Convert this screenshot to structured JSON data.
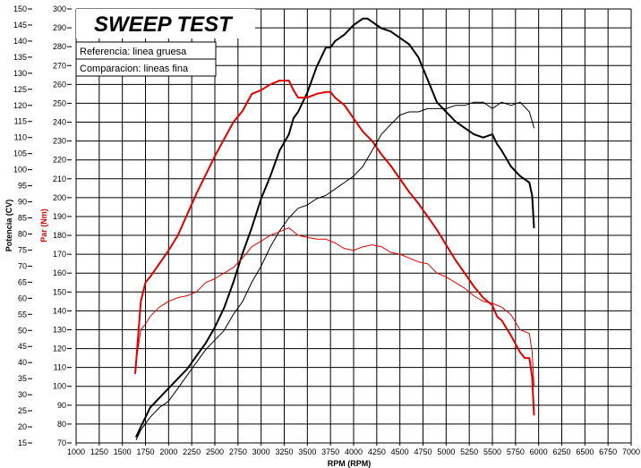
{
  "chart_data": {
    "type": "line",
    "title": "SWEEP TEST",
    "legend": [
      "Referencia: linea gruesa",
      "Comparacion: lineas fina"
    ],
    "xlabel": "RPM (RPM)",
    "ylabel_left": "Potencia (CV)",
    "ylabel_right": "Par (Nm)",
    "xlim": [
      1000,
      7000
    ],
    "ylim_power": [
      15,
      150
    ],
    "ylim_torque": [
      70,
      300
    ],
    "x_ticks": [
      "1000",
      "1250",
      "1500",
      "1750",
      "2000",
      "2250",
      "2500",
      "2750",
      "3000",
      "3250",
      "3500",
      "3750",
      "4000",
      "4250",
      "4500",
      "4750",
      "5000",
      "5250",
      "5500",
      "5750",
      "6000",
      "6250",
      "6500",
      "6750",
      "7000"
    ],
    "y_ticks_power": [
      "15",
      "20",
      "25",
      "30",
      "35",
      "40",
      "45",
      "50",
      "55",
      "60",
      "65",
      "70",
      "75",
      "80",
      "85",
      "90",
      "95",
      "100",
      "105",
      "110",
      "115",
      "120",
      "125",
      "130",
      "135",
      "140",
      "145",
      "150"
    ],
    "y_ticks_torque": [
      "70",
      "80",
      "90",
      "100",
      "110",
      "120",
      "130",
      "140",
      "150",
      "160",
      "170",
      "180",
      "190",
      "200",
      "210",
      "220",
      "230",
      "240",
      "250",
      "260",
      "270",
      "280",
      "290",
      "300"
    ],
    "grid": true,
    "series": [
      {
        "name": "Potencia - linea gruesa",
        "axis": "power",
        "color": "#000000",
        "width": 2,
        "x": [
          1650,
          1700,
          1750,
          1800,
          1900,
          2000,
          2100,
          2200,
          2300,
          2400,
          2500,
          2600,
          2700,
          2800,
          2900,
          3000,
          3100,
          3200,
          3300,
          3350,
          3400,
          3500,
          3600,
          3700,
          3750,
          3800,
          3900,
          4000,
          4100,
          4150,
          4200,
          4250,
          4300,
          4400,
          4500,
          4600,
          4700,
          4800,
          4900,
          5000,
          5100,
          5200,
          5300,
          5400,
          5500,
          5550,
          5600,
          5700,
          5800,
          5850,
          5900,
          5930,
          5950
        ],
        "y": [
          17,
          20,
          23,
          26,
          29,
          32,
          35,
          38,
          42,
          46,
          51,
          57,
          65,
          74,
          82,
          91,
          98,
          106,
          111,
          116,
          118,
          124,
          132,
          138,
          138,
          140,
          142,
          145,
          147,
          147,
          146,
          145,
          144,
          143,
          141,
          139,
          135,
          128,
          121,
          118,
          115,
          113,
          111,
          110,
          111,
          108,
          106,
          101,
          98,
          97,
          96,
          92,
          82
        ]
      },
      {
        "name": "Par - linea gruesa",
        "axis": "torque",
        "color": "#e00000",
        "width": 2,
        "x": [
          1640,
          1700,
          1750,
          1800,
          1900,
          2000,
          2100,
          2200,
          2300,
          2400,
          2500,
          2600,
          2700,
          2800,
          2900,
          3000,
          3100,
          3200,
          3300,
          3350,
          3400,
          3500,
          3600,
          3700,
          3750,
          3800,
          3900,
          4000,
          4100,
          4200,
          4300,
          4400,
          4500,
          4600,
          4700,
          4800,
          4900,
          5000,
          5100,
          5200,
          5300,
          5400,
          5500,
          5550,
          5600,
          5700,
          5800,
          5850,
          5900,
          5930,
          5950
        ],
        "y": [
          107,
          145,
          155,
          158,
          165,
          172,
          180,
          191,
          202,
          212,
          222,
          231,
          240,
          246,
          255,
          257,
          260,
          262,
          262,
          257,
          253,
          253,
          255,
          256,
          256,
          253,
          249,
          242,
          235,
          230,
          223,
          217,
          210,
          203,
          197,
          190,
          183,
          175,
          167,
          160,
          153,
          147,
          143,
          137,
          135,
          127,
          118,
          115,
          115,
          105,
          85
        ]
      },
      {
        "name": "Potencia - lineas fina",
        "axis": "power",
        "color": "#000000",
        "width": 1,
        "x": [
          1650,
          1700,
          1800,
          1900,
          2000,
          2100,
          2200,
          2300,
          2400,
          2500,
          2600,
          2700,
          2800,
          2900,
          3000,
          3100,
          3200,
          3300,
          3400,
          3500,
          3600,
          3700,
          3800,
          3900,
          4000,
          4100,
          4200,
          4300,
          4400,
          4500,
          4600,
          4700,
          4800,
          4900,
          5000,
          5100,
          5200,
          5300,
          5400,
          5500,
          5600,
          5700,
          5800,
          5900,
          5950
        ],
        "y": [
          16,
          19,
          23,
          26,
          28,
          32,
          36,
          40,
          44,
          47,
          50,
          55,
          59,
          65,
          70,
          76,
          81,
          85,
          88,
          89,
          91,
          92,
          94,
          96,
          98,
          101,
          106,
          111,
          114,
          117,
          118,
          118,
          119,
          119,
          119,
          120,
          120,
          121,
          121,
          119,
          121,
          120,
          121,
          118,
          113
        ]
      },
      {
        "name": "Par - lineas fina",
        "axis": "torque",
        "color": "#e00000",
        "width": 1,
        "x": [
          1640,
          1700,
          1750,
          1800,
          1900,
          2000,
          2100,
          2200,
          2300,
          2400,
          2500,
          2600,
          2700,
          2800,
          2900,
          3000,
          3100,
          3200,
          3300,
          3400,
          3500,
          3600,
          3700,
          3800,
          3900,
          4000,
          4100,
          4200,
          4300,
          4400,
          4500,
          4600,
          4700,
          4800,
          4900,
          5000,
          5100,
          5200,
          5300,
          5400,
          5500,
          5600,
          5700,
          5800,
          5900,
          5930,
          5950
        ],
        "y": [
          110,
          130,
          133,
          137,
          142,
          145,
          147,
          148,
          150,
          155,
          157,
          160,
          163,
          168,
          174,
          177,
          180,
          182,
          184,
          180,
          179,
          178,
          178,
          176,
          173,
          172,
          174,
          175,
          174,
          171,
          170,
          168,
          166,
          165,
          160,
          158,
          155,
          152,
          148,
          145,
          144,
          142,
          138,
          130,
          128,
          118,
          100
        ]
      }
    ]
  }
}
